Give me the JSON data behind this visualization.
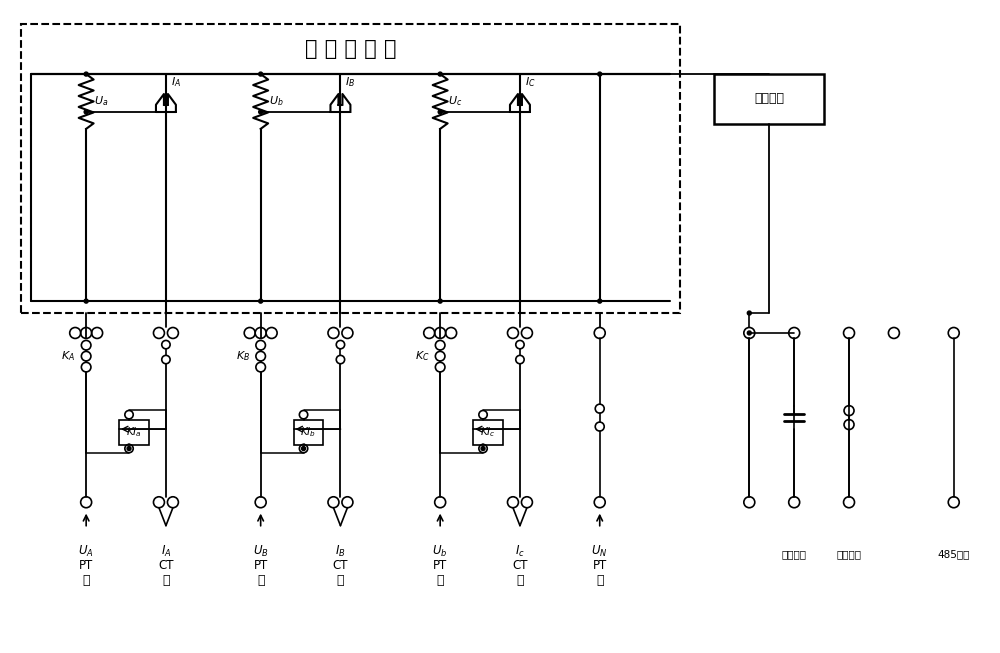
{
  "title": "三 相 电 能 表",
  "aux_label": "辅助电源",
  "bottom_labels": [
    "U_A",
    "I_A",
    "U_B",
    "I_B",
    "U_b",
    "I_c",
    "U_N"
  ],
  "bottom_types": [
    "PT",
    "CT",
    "PT",
    "CT",
    "PT",
    "CT",
    "PT"
  ],
  "right_labels": [
    "辅助电源",
    "开盒电源",
    "485通讯"
  ],
  "bg_color": "#ffffff"
}
